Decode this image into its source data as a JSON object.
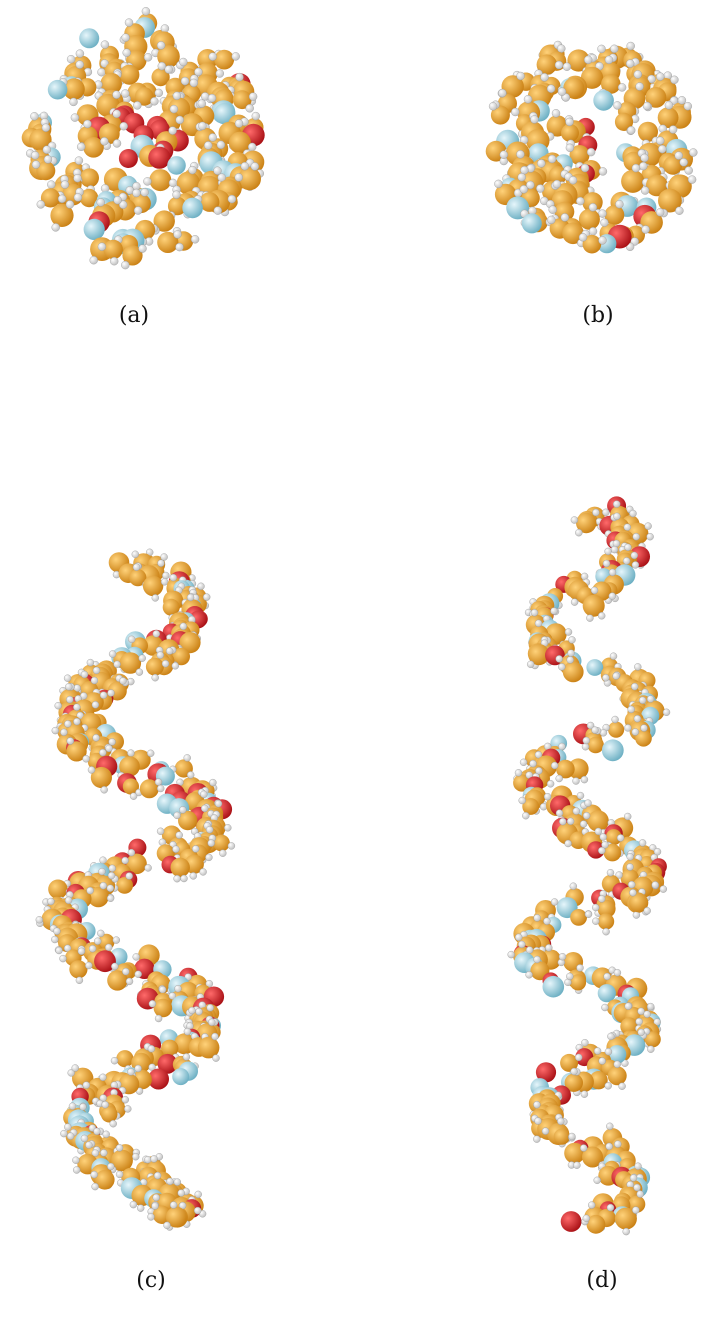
{
  "figure": {
    "captions": {
      "a": "(a)",
      "b": "(b)",
      "c": "(c)",
      "d": "(d)"
    }
  },
  "colors": {
    "carbon": "#f2a326",
    "carbon_shade": "#c97f12",
    "silicon": "#9fd3e3",
    "oxygen": "#e01e24",
    "hydrogen": "#f4f4f4",
    "hydrogen_edge": "#9a9a9a",
    "background": "#ffffff"
  }
}
